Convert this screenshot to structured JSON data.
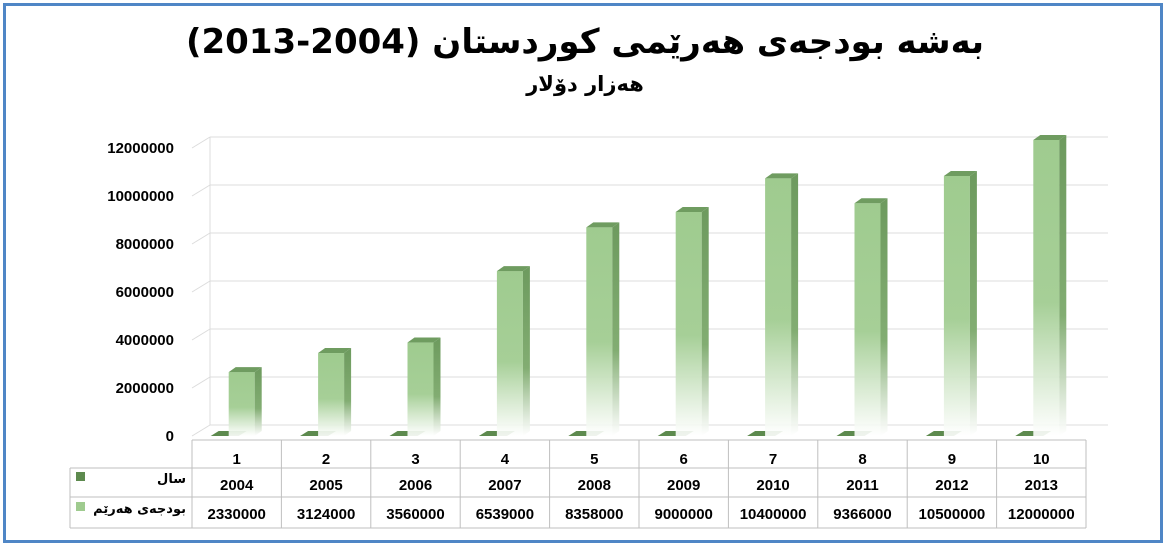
{
  "chart_data": {
    "type": "bar",
    "title": "بەشه بودجەی هەرێمی کوردستان (2004-2013)",
    "subtitle": "هەزار دۆلار",
    "categories": [
      "1",
      "2",
      "3",
      "4",
      "5",
      "6",
      "7",
      "8",
      "9",
      "10"
    ],
    "years": [
      "2004",
      "2005",
      "2006",
      "2007",
      "2008",
      "2009",
      "2010",
      "2011",
      "2012",
      "2013"
    ],
    "series": [
      {
        "name": "سال",
        "values": [
          2004,
          2005,
          2006,
          2007,
          2008,
          2009,
          2010,
          2011,
          2012,
          2013
        ],
        "color": "#5d8a4e"
      },
      {
        "name": "بودجەی هەرێم",
        "values": [
          2330000,
          3124000,
          3560000,
          6539000,
          8358000,
          9000000,
          10400000,
          9366000,
          10500000,
          12000000
        ],
        "color": "#9fcb8f"
      }
    ],
    "y_ticks": [
      "0",
      "2000000",
      "4000000",
      "6000000",
      "8000000",
      "10000000",
      "12000000"
    ],
    "ylim": [
      0,
      12000000
    ],
    "grid": true,
    "legend": "data-table"
  },
  "colors": {
    "frame": "#4f86c6",
    "bar_light": "#9fcb8f",
    "bar_dark": "#5d8a4e",
    "grid": "#dddddd"
  }
}
